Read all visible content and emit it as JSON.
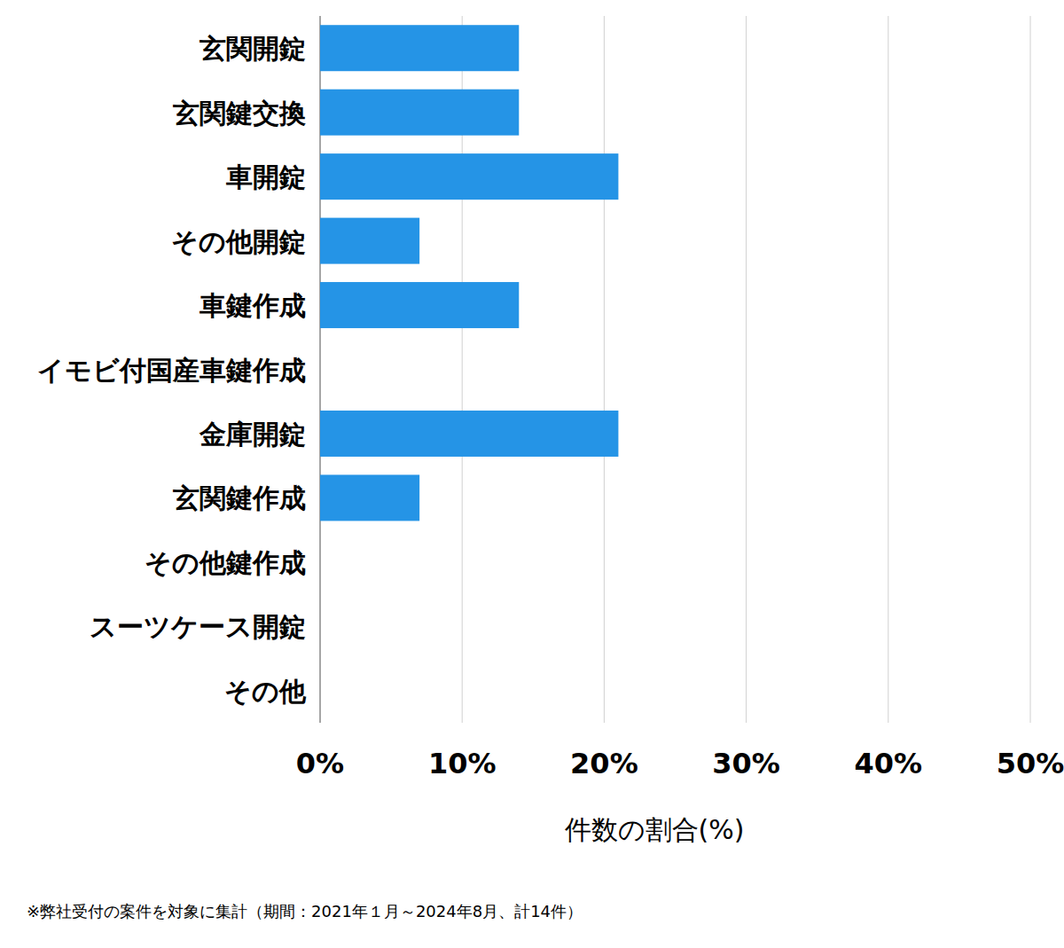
{
  "chart_data": {
    "type": "bar",
    "orientation": "horizontal",
    "categories": [
      "玄関開錠",
      "玄関鍵交換",
      "車開錠",
      "その他開錠",
      "車鍵作成",
      "イモビ付国産車鍵作成",
      "金庫開錠",
      "玄関鍵作成",
      "その他鍵作成",
      "スーツケース開錠",
      "その他"
    ],
    "values": [
      14,
      14,
      21,
      7,
      14,
      0,
      21,
      7,
      0,
      0,
      0
    ],
    "color": "#2594e6",
    "xlabel": "件数の割合(%)",
    "note": "※弊社受付の案件を対象に集計（期間：2021年１月～2024年8月、計14件）",
    "xlim": [
      0,
      50
    ],
    "xticks": [
      {
        "value": 0,
        "label": "0%"
      },
      {
        "value": 10,
        "label": "10%"
      },
      {
        "value": 20,
        "label": "20%"
      },
      {
        "value": 30,
        "label": "30%"
      },
      {
        "value": 40,
        "label": "40%"
      },
      {
        "value": 50,
        "label": "50%"
      }
    ],
    "grid": true
  }
}
